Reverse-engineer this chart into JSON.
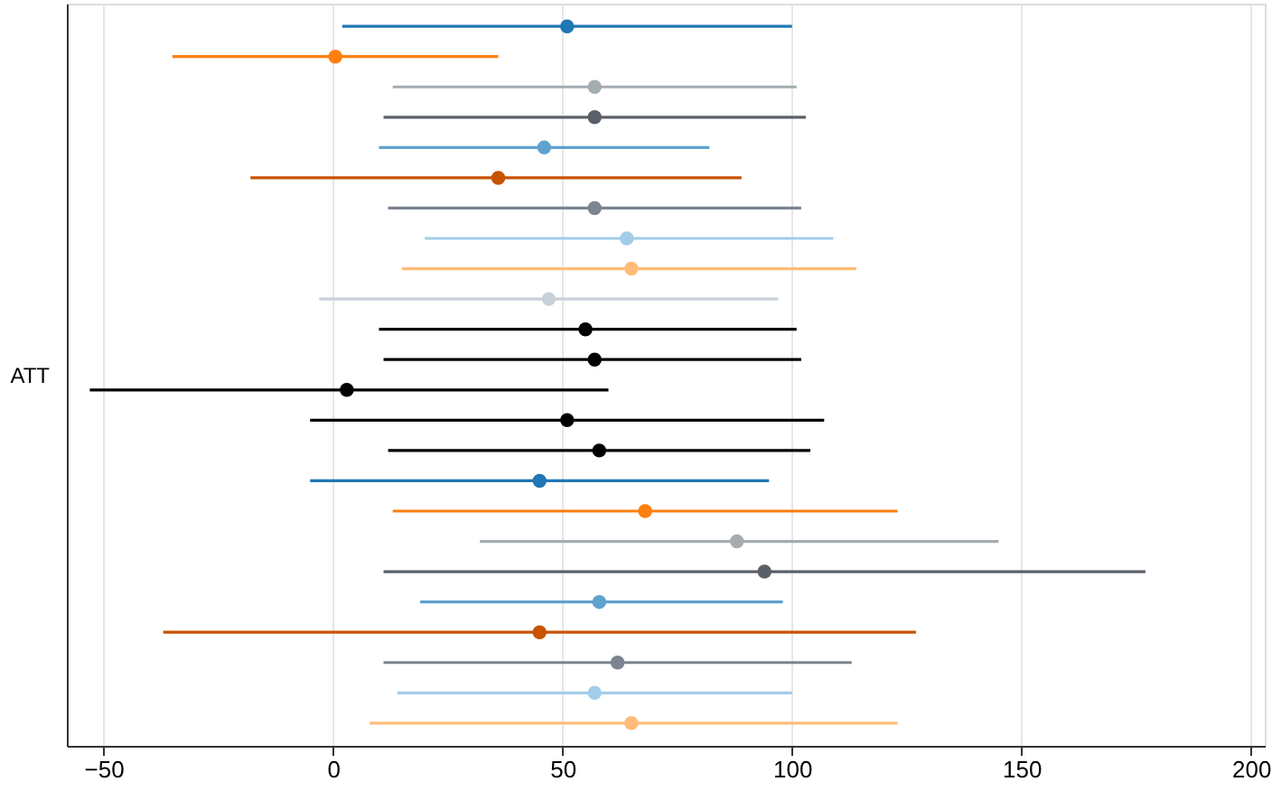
{
  "chart_data": {
    "type": "scatter",
    "orientation": "horizontal",
    "ylabel": "ATT",
    "categories": [
      null,
      null,
      null,
      null,
      null,
      null,
      null,
      null,
      null,
      null,
      null,
      null,
      null,
      null,
      null,
      null,
      null,
      null,
      null,
      null,
      null,
      null,
      null,
      null
    ],
    "xlim": [
      -58,
      203
    ],
    "xticks": [
      -50,
      0,
      50,
      100,
      150,
      200
    ],
    "grid": "x",
    "marker": "circle",
    "values": [
      51,
      0.5,
      57,
      57,
      46,
      36,
      57,
      64,
      65,
      47,
      55,
      57,
      3,
      51,
      58,
      45,
      68,
      88,
      94,
      58,
      45,
      62,
      57,
      65
    ],
    "errors": [
      [
        2,
        100
      ],
      [
        -35,
        36
      ],
      [
        13,
        101
      ],
      [
        11,
        103
      ],
      [
        10,
        82
      ],
      [
        -18,
        89
      ],
      [
        12,
        102
      ],
      [
        20,
        109
      ],
      [
        15,
        114
      ],
      [
        -3,
        97
      ],
      [
        10,
        101
      ],
      [
        11,
        102
      ],
      [
        -53,
        60
      ],
      [
        -5,
        107
      ],
      [
        12,
        104
      ],
      [
        -5,
        95
      ],
      [
        13,
        123
      ],
      [
        32,
        145
      ],
      [
        11,
        177
      ],
      [
        19,
        98
      ],
      [
        -37,
        127
      ],
      [
        11,
        113
      ],
      [
        14,
        100
      ],
      [
        8,
        123
      ]
    ],
    "colors": [
      "#1f77b4",
      "#ff7f0e",
      "#a5acaf",
      "#5a6068",
      "#5fa2ce",
      "#c85200",
      "#7b848f",
      "#a3cce9",
      "#ffbc79",
      "#c8d0d9",
      "#000000",
      "#000000",
      "#000000",
      "#000000",
      "#000000",
      "#1f77b4",
      "#ff7f0e",
      "#a5acaf",
      "#5a6068",
      "#5fa2ce",
      "#c85200",
      "#7b848f",
      "#a3cce9",
      "#ffbc79"
    ]
  }
}
